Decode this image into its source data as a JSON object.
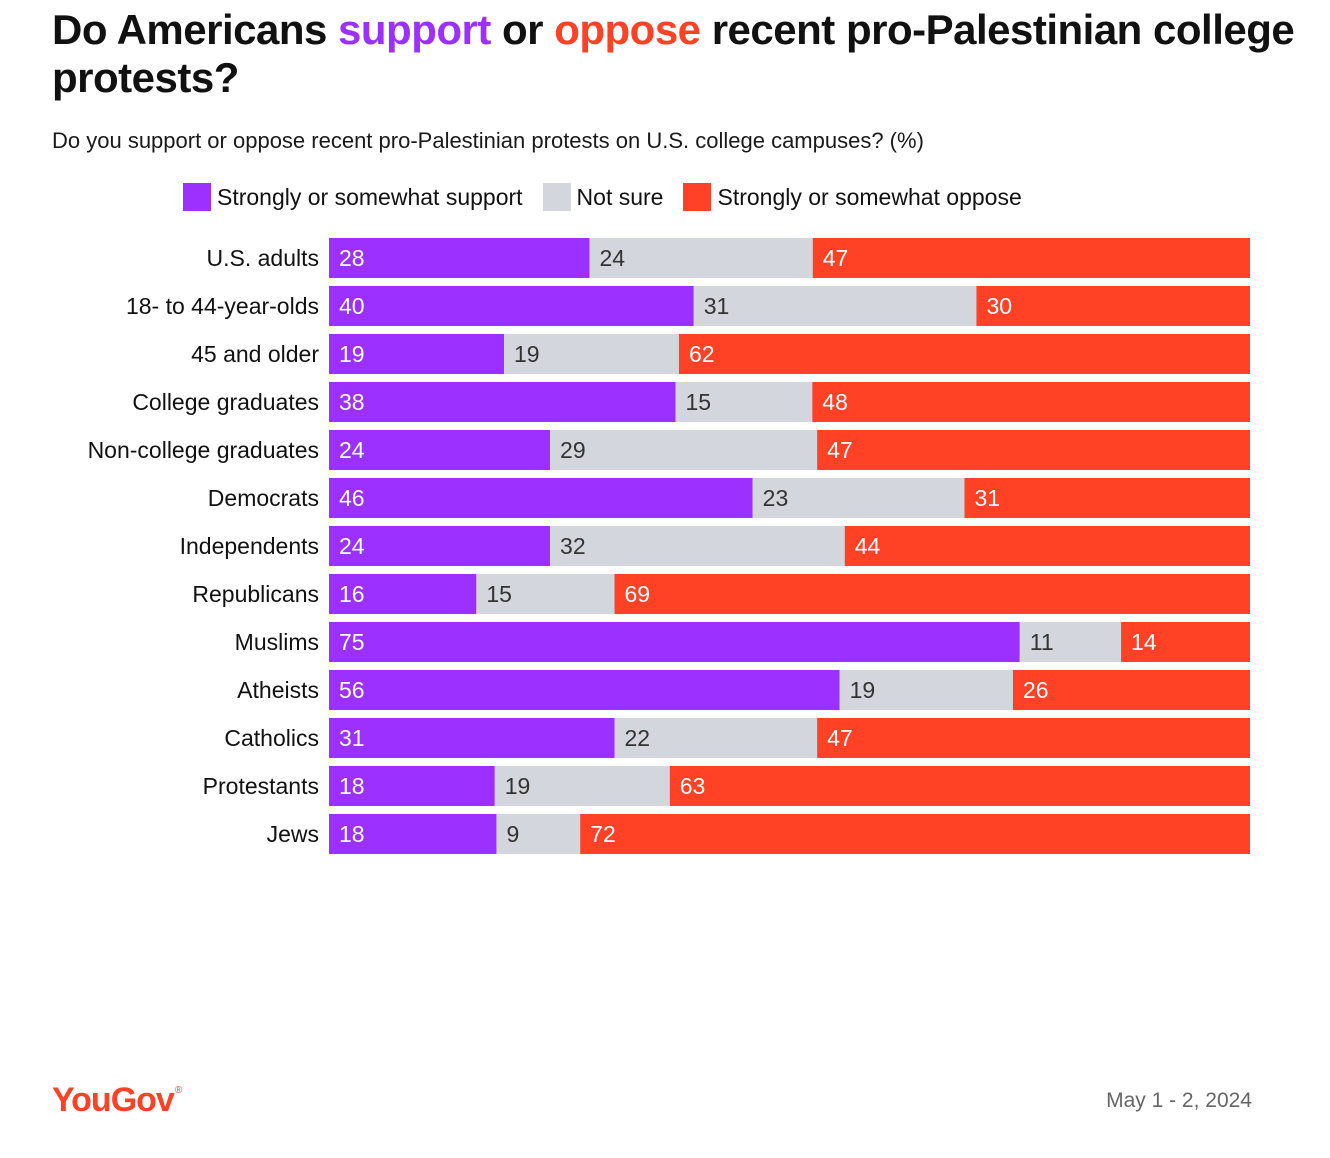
{
  "title": {
    "part1": "Do Americans ",
    "support_word": "support",
    "part2": " or ",
    "oppose_word": "oppose",
    "part3": " recent pro-Palestinian college protests?"
  },
  "subtitle": "Do you support or oppose recent pro-Palestinian protests on U.S. college campuses? (%)",
  "legend": [
    {
      "label": "Strongly or somewhat support",
      "color": "#9b30ff"
    },
    {
      "label": "Not sure",
      "color": "#d4d6de"
    },
    {
      "label": "Strongly or somewhat oppose",
      "color": "#ff4125"
    }
  ],
  "chart_data": {
    "type": "bar",
    "orientation": "horizontal",
    "stacked": true,
    "title": "Do Americans support or oppose recent pro-Palestinian college protests?",
    "categories": [
      "U.S. adults",
      "18- to 44-year-olds",
      "45 and older",
      "College graduates",
      "Non-college graduates",
      "Democrats",
      "Independents",
      "Republicans",
      "Muslims",
      "Atheists",
      "Catholics",
      "Protestants",
      "Jews"
    ],
    "groups": [
      [
        0
      ],
      [
        1,
        2
      ],
      [
        3,
        4
      ],
      [
        5,
        6,
        7
      ],
      [
        8,
        9,
        10,
        11,
        12
      ]
    ],
    "series": [
      {
        "name": "Strongly or somewhat support",
        "color": "#9b30ff",
        "label_color": "#ffffff",
        "values": [
          28,
          40,
          19,
          38,
          24,
          46,
          24,
          16,
          75,
          56,
          31,
          18,
          18
        ]
      },
      {
        "name": "Not sure",
        "color": "#d4d6de",
        "label_color": "#333333",
        "values": [
          24,
          31,
          19,
          15,
          29,
          23,
          32,
          15,
          11,
          19,
          22,
          19,
          9
        ]
      },
      {
        "name": "Strongly or somewhat oppose",
        "color": "#ff4125",
        "label_color": "#ffffff",
        "values": [
          47,
          30,
          62,
          48,
          47,
          31,
          44,
          69,
          14,
          26,
          47,
          63,
          72
        ]
      }
    ],
    "legend_position": "top",
    "grid": false
  },
  "footer": {
    "logo": "YouGov",
    "logo_mark": "®",
    "date": "May 1 - 2, 2024"
  }
}
